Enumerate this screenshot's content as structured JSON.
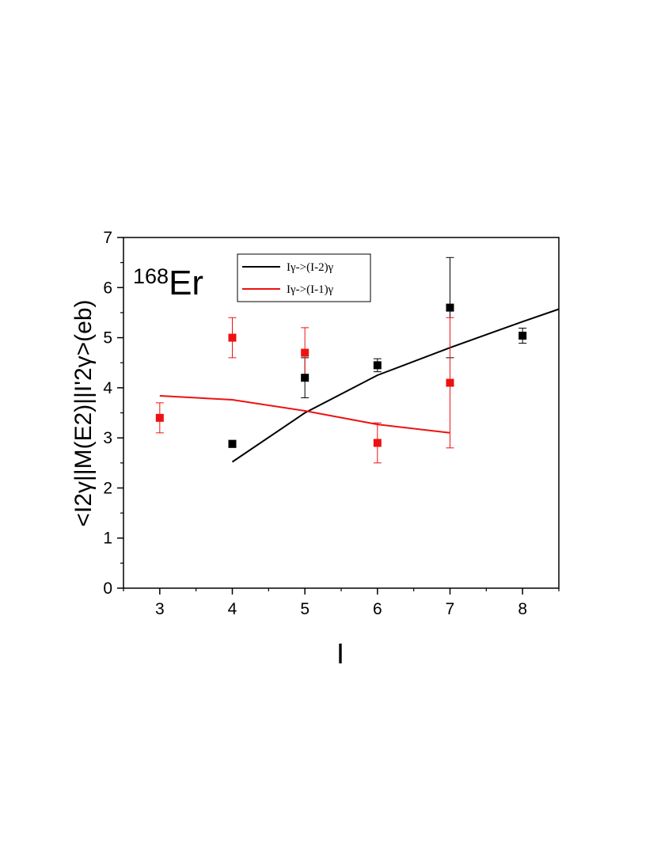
{
  "chart_data": {
    "type": "scatter",
    "xlabel": "I",
    "ylabel": "<I2γ||M(E2)||I'2γ>(eb)",
    "xlim": [
      2.5,
      8.5
    ],
    "ylim": [
      0,
      7
    ],
    "x_ticks": [
      "3",
      "4",
      "5",
      "6",
      "7",
      "8"
    ],
    "y_ticks": [
      "0",
      "1",
      "2",
      "3",
      "4",
      "5",
      "6",
      "7"
    ],
    "annotation": {
      "superscript": "168",
      "text": "Er"
    },
    "legend_position": "top-right",
    "series": [
      {
        "name": "Iγ->(I-2)γ",
        "kind": "line",
        "color": "#000000",
        "points": [
          [
            4,
            2.52
          ],
          [
            5,
            3.5
          ],
          [
            6,
            4.25
          ],
          [
            7,
            4.8
          ],
          [
            8,
            5.32
          ],
          [
            8.5,
            5.57
          ]
        ]
      },
      {
        "name": "Iγ->(I-1)γ",
        "kind": "line",
        "color": "#ee1111",
        "points": [
          [
            3,
            3.84
          ],
          [
            4,
            3.76
          ],
          [
            5,
            3.54
          ],
          [
            6,
            3.27
          ],
          [
            7,
            3.1
          ]
        ]
      },
      {
        "kind": "scatter",
        "color": "#000000",
        "points": [
          {
            "x": 4,
            "y": 2.88,
            "err": 0.07
          },
          {
            "x": 5,
            "y": 4.2,
            "err": 0.4
          },
          {
            "x": 6,
            "y": 4.45,
            "err": 0.13
          },
          {
            "x": 7,
            "y": 5.6,
            "err": 1.0
          },
          {
            "x": 8,
            "y": 5.04,
            "err": 0.15
          }
        ]
      },
      {
        "kind": "scatter",
        "color": "#ee1111",
        "points": [
          {
            "x": 3,
            "y": 3.4,
            "err": 0.3
          },
          {
            "x": 4,
            "y": 5.0,
            "err": 0.4
          },
          {
            "x": 5,
            "y": 4.7,
            "err": 0.5
          },
          {
            "x": 6,
            "y": 2.9,
            "err": 0.4
          },
          {
            "x": 7,
            "y": 4.1,
            "err": 1.3
          }
        ]
      }
    ]
  }
}
